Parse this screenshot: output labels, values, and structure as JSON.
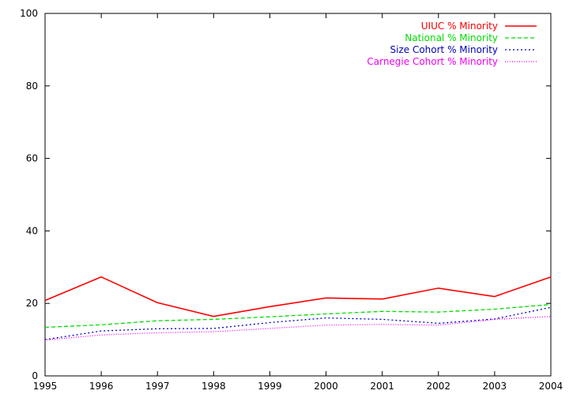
{
  "chart_data": {
    "type": "line",
    "title": "",
    "xlabel": "",
    "ylabel": "",
    "x": [
      1995,
      1996,
      1997,
      1998,
      1999,
      2000,
      2001,
      2002,
      2003,
      2004
    ],
    "xlim": [
      1995,
      2004
    ],
    "ylim": [
      0,
      100
    ],
    "xticks": [
      "1995",
      "1996",
      "1997",
      "1998",
      "1999",
      "2000",
      "2001",
      "2002",
      "2003",
      "2004"
    ],
    "yticks": [
      "0",
      "20",
      "40",
      "60",
      "80",
      "100"
    ],
    "grid": false,
    "legend_position": "top-right",
    "series": [
      {
        "name": "UIUC % Minority",
        "color": "#ff0000",
        "dash": "solid",
        "values": [
          20.8,
          27.3,
          20.2,
          16.4,
          19.1,
          21.5,
          21.2,
          24.2,
          21.9,
          27.3
        ]
      },
      {
        "name": "National % Minority",
        "color": "#00dd00",
        "dash": "dashed",
        "values": [
          13.4,
          14.1,
          15.2,
          15.6,
          16.3,
          17.1,
          17.8,
          17.6,
          18.4,
          19.7
        ]
      },
      {
        "name": "Size Cohort % Minority",
        "color": "#0000bb",
        "dash": "dotted",
        "values": [
          10.0,
          12.4,
          13.0,
          13.1,
          14.7,
          16.0,
          15.6,
          14.5,
          15.7,
          18.9
        ]
      },
      {
        "name": "Carnegie Cohort % Minority",
        "color": "#ee00ee",
        "dash": "fine-dotted",
        "values": [
          9.9,
          11.3,
          11.9,
          12.2,
          13.1,
          14.0,
          14.2,
          14.0,
          15.6,
          16.4
        ]
      }
    ]
  }
}
